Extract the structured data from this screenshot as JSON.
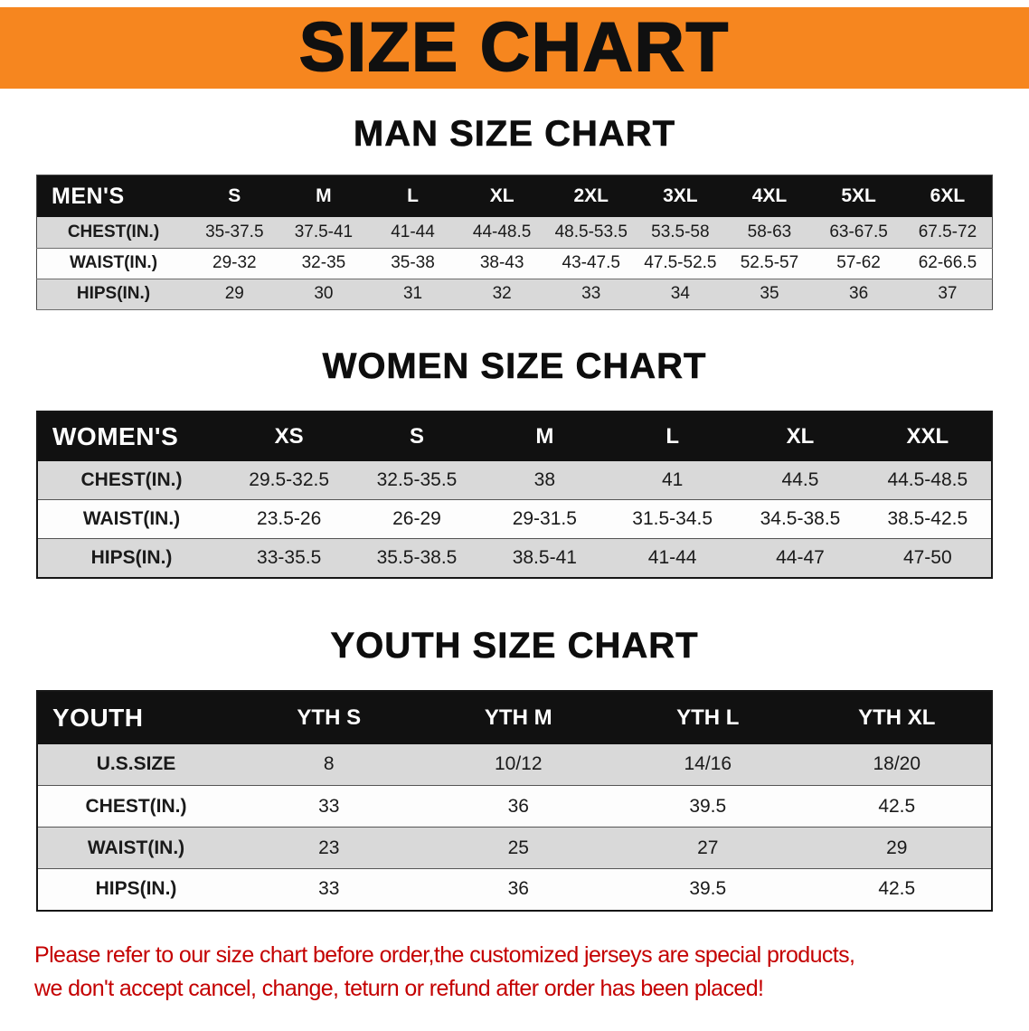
{
  "banner": {
    "title": "SIZE CHART"
  },
  "colors": {
    "banner_bg": "#F6861F",
    "banner_text": "#101010",
    "table_header_bg": "#111111",
    "table_header_text": "#FFFFFF",
    "row_shade": "#D9D9D9",
    "disclaimer_text": "#C40000"
  },
  "men": {
    "heading": "MAN SIZE CHART",
    "label": "MEN'S",
    "columns": [
      "S",
      "M",
      "L",
      "XL",
      "2XL",
      "3XL",
      "4XL",
      "5XL",
      "6XL"
    ],
    "rows": [
      {
        "label": "CHEST(IN.)",
        "values": [
          "35-37.5",
          "37.5-41",
          "41-44",
          "44-48.5",
          "48.5-53.5",
          "53.5-58",
          "58-63",
          "63-67.5",
          "67.5-72"
        ]
      },
      {
        "label": "WAIST(IN.)",
        "values": [
          "29-32",
          "32-35",
          "35-38",
          "38-43",
          "43-47.5",
          "47.5-52.5",
          "52.5-57",
          "57-62",
          "62-66.5"
        ]
      },
      {
        "label": "HIPS(IN.)",
        "values": [
          "29",
          "30",
          "31",
          "32",
          "33",
          "34",
          "35",
          "36",
          "37"
        ]
      }
    ]
  },
  "women": {
    "heading": "WOMEN SIZE CHART",
    "label": "WOMEN'S",
    "columns": [
      "XS",
      "S",
      "M",
      "L",
      "XL",
      "XXL"
    ],
    "rows": [
      {
        "label": "CHEST(IN.)",
        "values": [
          "29.5-32.5",
          "32.5-35.5",
          "38",
          "41",
          "44.5",
          "44.5-48.5"
        ]
      },
      {
        "label": "WAIST(IN.)",
        "values": [
          "23.5-26",
          "26-29",
          "29-31.5",
          "31.5-34.5",
          "34.5-38.5",
          "38.5-42.5"
        ]
      },
      {
        "label": "HIPS(IN.)",
        "values": [
          "33-35.5",
          "35.5-38.5",
          "38.5-41",
          "41-44",
          "44-47",
          "47-50"
        ]
      }
    ]
  },
  "youth": {
    "heading": "YOUTH SIZE CHART",
    "label": "YOUTH",
    "columns": [
      "YTH S",
      "YTH M",
      "YTH L",
      "YTH XL"
    ],
    "rows": [
      {
        "label": "U.S.SIZE",
        "values": [
          "8",
          "10/12",
          "14/16",
          "18/20"
        ]
      },
      {
        "label": "CHEST(IN.)",
        "values": [
          "33",
          "36",
          "39.5",
          "42.5"
        ]
      },
      {
        "label": "WAIST(IN.)",
        "values": [
          "23",
          "25",
          "27",
          "29"
        ]
      },
      {
        "label": "HIPS(IN.)",
        "values": [
          "33",
          "36",
          "39.5",
          "42.5"
        ]
      }
    ]
  },
  "disclaimer": {
    "line1": "Please refer to our size chart before order,the customized jerseys are special products,",
    "line2": "we don't accept cancel, change, teturn or refund after order has been placed!"
  }
}
